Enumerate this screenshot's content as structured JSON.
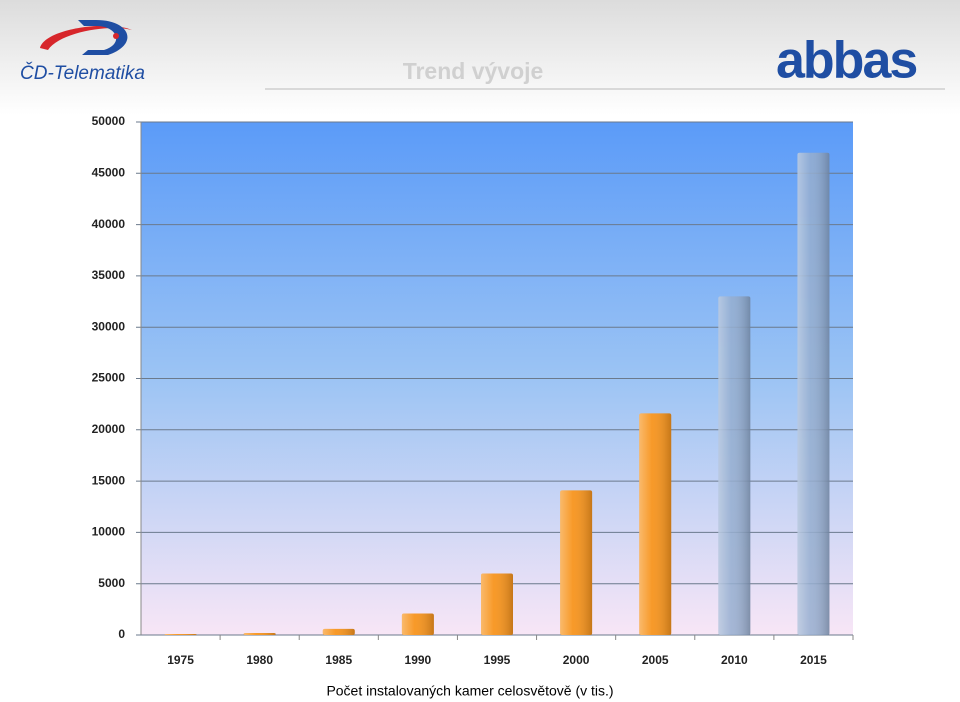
{
  "header": {
    "left_logo": "ČD-Telematika",
    "right_logo": "abbas"
  },
  "chart_data": {
    "type": "bar",
    "title": "Trend vývoje",
    "categories": [
      "1975",
      "1980",
      "1985",
      "1990",
      "1995",
      "2000",
      "2005",
      "2010",
      "2015"
    ],
    "values": [
      100,
      200,
      600,
      2100,
      6000,
      14100,
      21600,
      33000,
      47000
    ],
    "colors": [
      "#f7941d",
      "#f7941d",
      "#f7941d",
      "#f7941d",
      "#f7941d",
      "#f7941d",
      "#f7941d",
      "#8fa9cc",
      "#8fa9cc"
    ],
    "ylim": [
      0,
      50000
    ],
    "yticks": [
      0,
      5000,
      10000,
      15000,
      20000,
      25000,
      30000,
      35000,
      40000,
      45000,
      50000
    ],
    "grid": true
  },
  "caption": "Počet instalovaných kamer celosvětově (v tis.)"
}
